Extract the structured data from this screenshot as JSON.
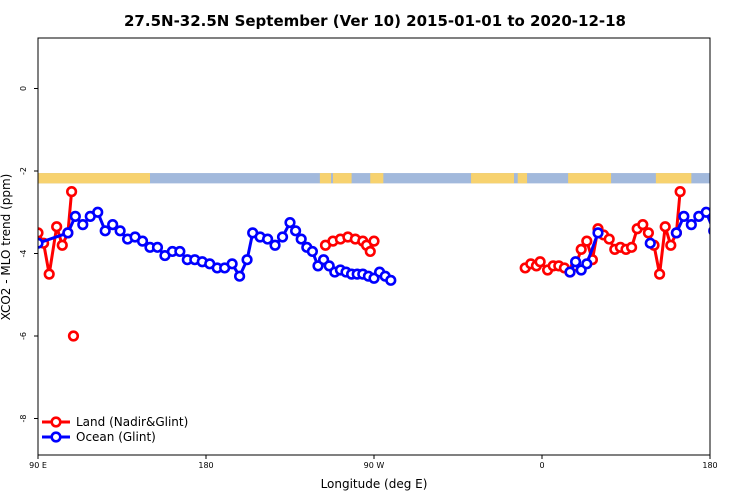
{
  "chart_data": {
    "type": "line",
    "title": "27.5N-32.5N September (Ver 10)   2015-01-01 to 2020-12-18",
    "xlabel": "Longitude (deg E)",
    "ylabel": "XCO2 - MLO trend (ppm)",
    "xlim": [
      90,
      450
    ],
    "ylim": [
      -9,
      1.5
    ],
    "x_ticks": [
      {
        "value": 90,
        "label": "90 E"
      },
      {
        "value": 180,
        "label": "180"
      },
      {
        "value": 270,
        "label": "90 W"
      },
      {
        "value": 360,
        "label": "0"
      },
      {
        "value": 450,
        "label": "180"
      }
    ],
    "y_ticks": [
      {
        "value": 0,
        "label": "0"
      },
      {
        "value": -2,
        "label": "-2"
      },
      {
        "value": -4,
        "label": "-4"
      },
      {
        "value": -6,
        "label": "-6"
      },
      {
        "value": -8,
        "label": "-8"
      }
    ],
    "land_ocean_strip": {
      "y_top": -2.05,
      "y_bottom": -2.3,
      "ocean_color": "#a2b9dc",
      "land_color": "#f7d26f",
      "land_ranges": [
        [
          90,
          150
        ],
        [
          241,
          247
        ],
        [
          248,
          258
        ],
        [
          268,
          275
        ],
        [
          322,
          345
        ],
        [
          347,
          352
        ],
        [
          374,
          397
        ],
        [
          421,
          440
        ]
      ]
    },
    "series": [
      {
        "name": "Land (Nadir&Glint)",
        "color": "#ff0000",
        "segments": [
          [
            [
              87.5,
              -3.6
            ],
            [
              90,
              -3.5
            ],
            [
              93,
              -3.75
            ],
            [
              96,
              -4.5
            ],
            [
              100,
              -3.35
            ],
            [
              103,
              -3.8
            ],
            [
              106,
              -3.5
            ],
            [
              108,
              -2.5
            ]
          ],
          [
            [
              244,
              -3.8
            ],
            [
              248,
              -3.7
            ],
            [
              252,
              -3.65
            ],
            [
              256,
              -3.6
            ],
            [
              260,
              -3.65
            ],
            [
              264,
              -3.7
            ],
            [
              266,
              -3.8
            ],
            [
              268,
              -3.95
            ],
            [
              270,
              -3.7
            ]
          ],
          [
            [
              351,
              -4.35
            ],
            [
              354,
              -4.25
            ],
            [
              357,
              -4.3
            ],
            [
              359,
              -4.2
            ],
            [
              363,
              -4.4
            ],
            [
              366,
              -4.3
            ],
            [
              369,
              -4.3
            ],
            [
              372,
              -4.35
            ],
            [
              375,
              -4.45
            ],
            [
              378,
              -4.3
            ],
            [
              381,
              -3.9
            ],
            [
              384,
              -3.7
            ],
            [
              387,
              -4.15
            ],
            [
              390,
              -3.4
            ],
            [
              393,
              -3.55
            ],
            [
              396,
              -3.65
            ],
            [
              399,
              -3.9
            ],
            [
              402,
              -3.85
            ],
            [
              405,
              -3.9
            ],
            [
              408,
              -3.85
            ],
            [
              411,
              -3.4
            ],
            [
              414,
              -3.3
            ],
            [
              417,
              -3.5
            ],
            [
              420,
              -3.8
            ],
            [
              423,
              -4.5
            ],
            [
              426,
              -3.35
            ],
            [
              429,
              -3.8
            ],
            [
              432,
              -3.5
            ],
            [
              434,
              -2.5
            ]
          ]
        ],
        "points": [
          [
            109,
            -6.0
          ],
          [
            453,
            -6.0
          ]
        ]
      },
      {
        "name": "Ocean (Glint)",
        "color": "#0000ff",
        "segments": [
          [
            [
              90,
              -3.75
            ],
            [
              106,
              -3.5
            ],
            [
              110,
              -3.1
            ],
            [
              114,
              -3.3
            ],
            [
              118,
              -3.1
            ],
            [
              122,
              -3.0
            ],
            [
              126,
              -3.45
            ],
            [
              130,
              -3.3
            ],
            [
              134,
              -3.45
            ],
            [
              138,
              -3.65
            ],
            [
              142,
              -3.6
            ],
            [
              146,
              -3.7
            ],
            [
              150,
              -3.85
            ],
            [
              154,
              -3.85
            ],
            [
              158,
              -4.05
            ],
            [
              162,
              -3.95
            ],
            [
              166,
              -3.95
            ],
            [
              170,
              -4.15
            ],
            [
              174,
              -4.15
            ],
            [
              178,
              -4.2
            ],
            [
              182,
              -4.25
            ],
            [
              186,
              -4.35
            ],
            [
              190,
              -4.35
            ],
            [
              194,
              -4.25
            ],
            [
              198,
              -4.55
            ],
            [
              202,
              -4.15
            ],
            [
              205,
              -3.5
            ],
            [
              209,
              -3.6
            ],
            [
              213,
              -3.65
            ],
            [
              217,
              -3.8
            ],
            [
              221,
              -3.6
            ],
            [
              225,
              -3.25
            ],
            [
              228,
              -3.45
            ],
            [
              231,
              -3.65
            ],
            [
              234,
              -3.85
            ],
            [
              237,
              -3.95
            ],
            [
              240,
              -4.3
            ],
            [
              243,
              -4.15
            ],
            [
              246,
              -4.3
            ],
            [
              249,
              -4.45
            ],
            [
              252,
              -4.4
            ],
            [
              255,
              -4.45
            ],
            [
              258,
              -4.5
            ],
            [
              261,
              -4.5
            ],
            [
              264,
              -4.5
            ],
            [
              267,
              -4.55
            ],
            [
              270,
              -4.6
            ],
            [
              273,
              -4.45
            ],
            [
              276,
              -4.55
            ],
            [
              279,
              -4.65
            ]
          ],
          [
            [
              375,
              -4.45
            ],
            [
              378,
              -4.2
            ],
            [
              381,
              -4.4
            ],
            [
              384,
              -4.25
            ],
            [
              390,
              -3.5
            ]
          ],
          [
            [
              432,
              -3.5
            ],
            [
              436,
              -3.1
            ],
            [
              440,
              -3.3
            ],
            [
              444,
              -3.1
            ],
            [
              448,
              -3.0
            ],
            [
              452,
              -3.45
            ],
            [
              456,
              -3.3
            ],
            [
              460,
              -3.45
            ],
            [
              464,
              -3.65
            ],
            [
              468,
              -3.6
            ],
            [
              472,
              -3.7
            ],
            [
              476,
              -3.85
            ]
          ]
        ],
        "points": [
          [
            418,
            -3.75
          ]
        ]
      }
    ],
    "legend": {
      "placement": "bottom-left",
      "entries": [
        "Land (Nadir&Glint)",
        "Ocean (Glint)"
      ]
    }
  }
}
